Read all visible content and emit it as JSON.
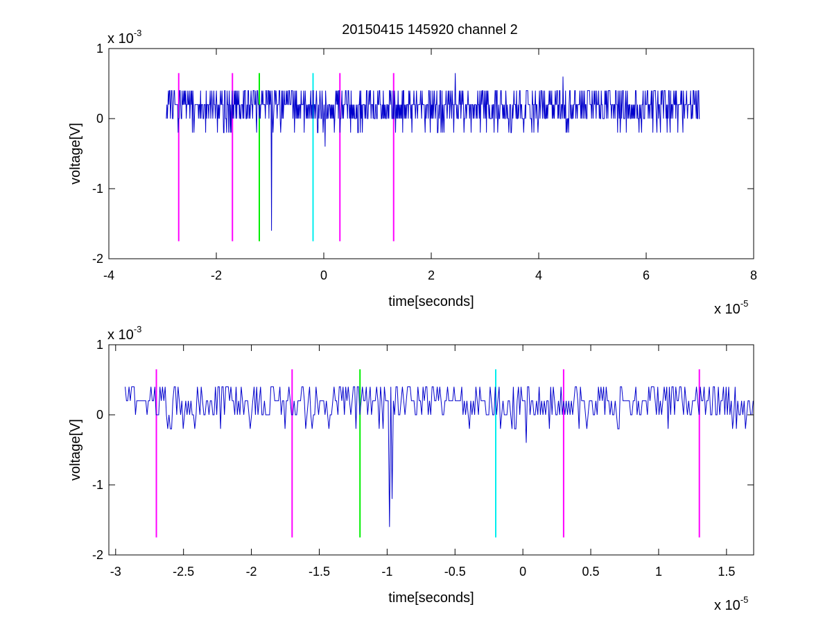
{
  "title": "20150415 145920 channel 2",
  "colors": {
    "signal": "#0000cc",
    "magenta": "#ff00ff",
    "green": "#00ee00",
    "cyan": "#00eeee",
    "axis": "#000000"
  },
  "chart_data": [
    {
      "type": "line",
      "title": "20150415 145920 channel 2",
      "xlabel": "time[seconds]",
      "ylabel": "voltage[V]",
      "x_unit_label": "x 10",
      "x_exponent": "-5",
      "y_unit_label": "x 10",
      "y_exponent": "-3",
      "xlim": [
        -4,
        8
      ],
      "ylim": [
        -2,
        1
      ],
      "xticks": [
        -4,
        -2,
        0,
        2,
        4,
        6,
        8
      ],
      "xtick_labels": [
        "-4",
        "-2",
        "0",
        "2",
        "4",
        "6",
        "8"
      ],
      "yticks": [
        -2,
        -1,
        0,
        1
      ],
      "ytick_labels": [
        "-2",
        "-1",
        "0",
        "1"
      ],
      "grid": false,
      "signal_range": [
        -2.93,
        7.0
      ],
      "signal_features": [
        {
          "x": -2.42,
          "y": -0.2
        },
        {
          "x": -0.97,
          "y": -1.6
        },
        {
          "x": 0.02,
          "y": -0.4
        },
        {
          "x": 2.45,
          "y": -0.4
        },
        {
          "x": 2.45,
          "y": 0.65
        },
        {
          "x": 4.45,
          "y": 0.6
        }
      ],
      "markers": [
        {
          "x": -2.7,
          "y_bottom": -1.75,
          "y_top": 0.65,
          "color": "magenta"
        },
        {
          "x": -1.7,
          "y_bottom": -1.75,
          "y_top": 0.65,
          "color": "magenta"
        },
        {
          "x": -1.2,
          "y_bottom": -1.75,
          "y_top": 0.65,
          "color": "green"
        },
        {
          "x": -0.2,
          "y_bottom": -1.75,
          "y_top": 0.65,
          "color": "cyan"
        },
        {
          "x": 0.3,
          "y_bottom": -1.75,
          "y_top": 0.65,
          "color": "magenta"
        },
        {
          "x": 1.3,
          "y_bottom": -1.75,
          "y_top": 0.65,
          "color": "magenta"
        }
      ]
    },
    {
      "type": "line",
      "xlabel": "time[seconds]",
      "ylabel": "voltage[V]",
      "x_unit_label": "x 10",
      "x_exponent": "-5",
      "y_unit_label": "x 10",
      "y_exponent": "-3",
      "xlim": [
        -3.05,
        1.7
      ],
      "ylim": [
        -2,
        1
      ],
      "xticks": [
        -3,
        -2.5,
        -2,
        -1.5,
        -1,
        -0.5,
        0,
        0.5,
        1,
        1.5
      ],
      "xtick_labels": [
        "-3",
        "-2.5",
        "-2",
        "-1.5",
        "-1",
        "-0.5",
        "0",
        "0.5",
        "1",
        "1.5"
      ],
      "yticks": [
        -2,
        -1,
        0,
        1
      ],
      "ytick_labels": [
        "-2",
        "-1",
        "0",
        "1"
      ],
      "grid": false,
      "signal_range": [
        -2.93,
        1.7
      ],
      "signal_features": [
        {
          "x": -2.42,
          "y": 0.6
        },
        {
          "x": -2.42,
          "y": -0.2
        },
        {
          "x": -0.98,
          "y": -1.6
        },
        {
          "x": -0.96,
          "y": -1.2
        },
        {
          "x": 0.02,
          "y": -0.4
        }
      ],
      "markers": [
        {
          "x": -2.7,
          "y_bottom": -1.75,
          "y_top": 0.65,
          "color": "magenta"
        },
        {
          "x": -1.7,
          "y_bottom": -1.75,
          "y_top": 0.65,
          "color": "magenta"
        },
        {
          "x": -1.2,
          "y_bottom": -1.75,
          "y_top": 0.65,
          "color": "green"
        },
        {
          "x": -0.2,
          "y_bottom": -1.75,
          "y_top": 0.65,
          "color": "cyan"
        },
        {
          "x": 0.3,
          "y_bottom": -1.75,
          "y_top": 0.65,
          "color": "magenta"
        },
        {
          "x": 1.3,
          "y_bottom": -1.75,
          "y_top": 0.65,
          "color": "magenta"
        }
      ]
    }
  ]
}
